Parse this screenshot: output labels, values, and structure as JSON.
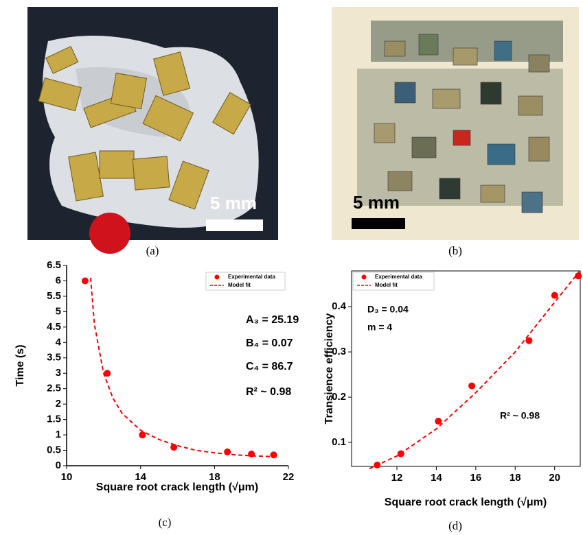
{
  "photos": [
    {
      "label": "(a)",
      "scale_text": "5 mm"
    },
    {
      "label": "(b)",
      "scale_text": "5 mm"
    }
  ],
  "chart_data": [
    {
      "type": "scatter",
      "panel_label": "(c)",
      "x_label": "Square root crack length (√μm)",
      "y_label": "Time (s)",
      "xlim": [
        10,
        22
      ],
      "xticks": [
        10,
        14,
        18,
        22
      ],
      "ylim": [
        0,
        6.5
      ],
      "yticks": [
        0,
        0.5,
        1,
        1.5,
        2,
        2.5,
        3,
        3.5,
        4,
        4.5,
        5,
        5.5,
        6,
        6.5
      ],
      "frame": false,
      "annotations": [
        "A₃ = 25.19",
        "B₄ = 0.07",
        "C₄ = 86.7",
        "R² ~ 0.98"
      ],
      "series": [
        {
          "name": "Experimental data",
          "color": "#ff0000",
          "style": "marker",
          "x": [
            11,
            12.2,
            14.1,
            15.8,
            18.7,
            20,
            21.2
          ],
          "values": [
            6,
            3,
            1,
            0.6,
            0.45,
            0.38,
            0.35
          ]
        },
        {
          "name": "Model fit",
          "color": "#ff0000",
          "style": "dashed",
          "x": [
            11.3,
            11.5,
            12,
            12.5,
            13,
            14,
            15,
            16,
            17,
            18,
            19,
            20,
            21,
            21.4
          ],
          "values": [
            6.1,
            4.6,
            3.0,
            2.2,
            1.7,
            1.15,
            0.85,
            0.65,
            0.5,
            0.42,
            0.36,
            0.32,
            0.3,
            0.29
          ]
        }
      ]
    },
    {
      "type": "scatter",
      "panel_label": "(d)",
      "x_label": "Square root crack length (√μm)",
      "y_label": "Transience efficiency",
      "xlim": [
        9.7,
        21.3
      ],
      "xticks": [
        12,
        14,
        16,
        18,
        20
      ],
      "ylim": [
        0.047,
        0.479
      ],
      "yticks": [
        0.1,
        0.2,
        0.3,
        0.4
      ],
      "frame": true,
      "annotations": [
        "D₃ = 0.04",
        "m = 4",
        "R² ~ 0.98"
      ],
      "series": [
        {
          "name": "Experimental data",
          "color": "#ff0000",
          "style": "marker",
          "x": [
            11,
            12.2,
            14.1,
            15.8,
            18.7,
            20,
            21.2
          ],
          "values": [
            0.05,
            0.075,
            0.147,
            0.225,
            0.325,
            0.425,
            0.468
          ]
        },
        {
          "name": "Model fit",
          "color": "#ff0000",
          "style": "dashed",
          "x": [
            10.6,
            12,
            14,
            16,
            18,
            20,
            21.3
          ],
          "values": [
            0.042,
            0.07,
            0.13,
            0.21,
            0.3,
            0.41,
            0.48
          ]
        }
      ]
    }
  ]
}
